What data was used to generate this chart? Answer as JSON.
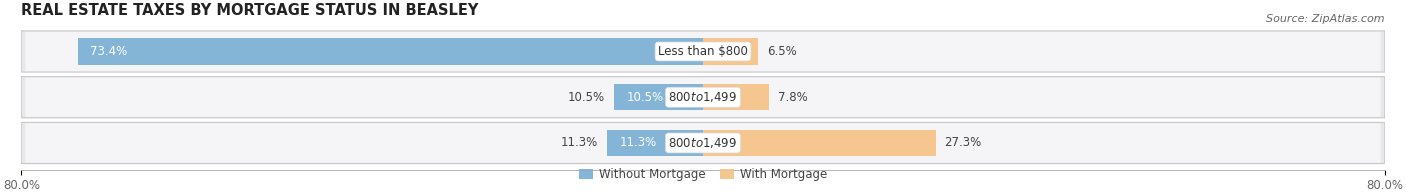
{
  "title": "REAL ESTATE TAXES BY MORTGAGE STATUS IN BEASLEY",
  "source": "Source: ZipAtlas.com",
  "categories": [
    "Less than $800",
    "$800 to $1,499",
    "$800 to $1,499"
  ],
  "without_mortgage": [
    73.4,
    10.5,
    11.3
  ],
  "with_mortgage": [
    6.5,
    7.8,
    27.3
  ],
  "color_without": "#7bafd4",
  "color_with": "#f5c48a",
  "bar_height": 0.58,
  "xlim_left": -80,
  "xlim_right": 80,
  "legend_labels": [
    "Without Mortgage",
    "With Mortgage"
  ],
  "background_row_color": "#e8e8ec",
  "background_row_inner": "#f5f5f7",
  "background_fig": "#ffffff",
  "title_fontsize": 10.5,
  "source_fontsize": 8,
  "label_fontsize": 8.5,
  "category_fontsize": 8.5,
  "axis_fontsize": 8.5,
  "legend_fontsize": 8.5,
  "label_color": "#444444",
  "category_color": "#333333",
  "title_color": "#222222",
  "source_color": "#666666"
}
